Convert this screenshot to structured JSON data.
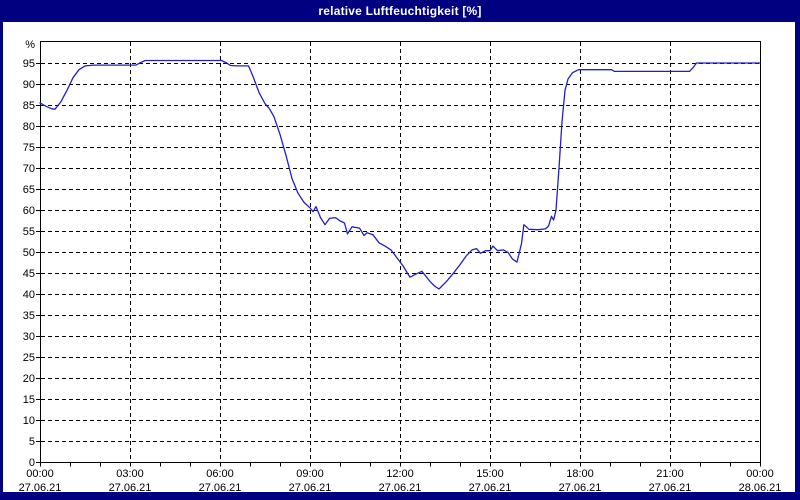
{
  "window": {
    "title": "relative Luftfeuchtigkeit [%]"
  },
  "colors": {
    "title_bar_bg": "#000080",
    "title_text": "#ffffff",
    "window_border": "#000080",
    "plot_bg": "#ffffff",
    "grid": "#000000",
    "axis_text": "#000000",
    "line": "#2020c8"
  },
  "chart_data": {
    "type": "line",
    "title": "relative Luftfeuchtigkeit [%]",
    "ylabel": "%",
    "y_unit_label": "%",
    "grid": "dashed",
    "legend": "none",
    "x_range_hours": [
      0,
      24
    ],
    "y_range": [
      0,
      100
    ],
    "y_ticks": [
      0,
      5,
      10,
      15,
      20,
      25,
      30,
      35,
      40,
      45,
      50,
      55,
      60,
      65,
      70,
      75,
      80,
      85,
      90,
      95
    ],
    "x_tick_interval_hours": 3,
    "x_minor_tick_interval_hours": 1,
    "x_tick_labels": [
      {
        "time": "00:00",
        "date": "27.06.21"
      },
      {
        "time": "03:00",
        "date": "27.06.21"
      },
      {
        "time": "06:00",
        "date": "27.06.21"
      },
      {
        "time": "09:00",
        "date": "27.06.21"
      },
      {
        "time": "12:00",
        "date": "27.06.21"
      },
      {
        "time": "15:00",
        "date": "27.06.21"
      },
      {
        "time": "18:00",
        "date": "27.06.21"
      },
      {
        "time": "21:00",
        "date": "27.06.21"
      },
      {
        "time": "00:00",
        "date": "28.06.21"
      }
    ],
    "series": [
      {
        "name": "relative Luftfeuchtigkeit",
        "unit": "%",
        "points": [
          [
            0,
            85.5
          ],
          [
            0.2,
            84.7
          ],
          [
            0.4,
            84.1
          ],
          [
            0.5,
            84.0
          ],
          [
            0.7,
            85.8
          ],
          [
            0.9,
            88.5
          ],
          [
            1.1,
            91.5
          ],
          [
            1.3,
            93.4
          ],
          [
            1.5,
            94.3
          ],
          [
            1.8,
            94.5
          ],
          [
            3.2,
            94.5
          ],
          [
            3.35,
            95.1
          ],
          [
            3.5,
            95.6
          ],
          [
            6.05,
            95.6
          ],
          [
            6.2,
            95.1
          ],
          [
            6.35,
            94.4
          ],
          [
            6.55,
            94.3
          ],
          [
            6.95,
            94.3
          ],
          [
            7.1,
            91.8
          ],
          [
            7.3,
            88.0
          ],
          [
            7.5,
            85.3
          ],
          [
            7.65,
            84.1
          ],
          [
            7.8,
            82.2
          ],
          [
            8.0,
            78.0
          ],
          [
            8.2,
            73.0
          ],
          [
            8.4,
            67.5
          ],
          [
            8.6,
            64.0
          ],
          [
            8.8,
            61.8
          ],
          [
            9.0,
            60.5
          ],
          [
            9.1,
            59.6
          ],
          [
            9.2,
            60.8
          ],
          [
            9.35,
            58.2
          ],
          [
            9.5,
            56.5
          ],
          [
            9.65,
            58.0
          ],
          [
            9.85,
            58.2
          ],
          [
            10.0,
            57.4
          ],
          [
            10.15,
            56.9
          ],
          [
            10.25,
            54.3
          ],
          [
            10.4,
            56.0
          ],
          [
            10.65,
            55.7
          ],
          [
            10.8,
            53.9
          ],
          [
            10.9,
            54.6
          ],
          [
            11.1,
            54.1
          ],
          [
            11.3,
            52.2
          ],
          [
            11.5,
            51.4
          ],
          [
            11.7,
            50.5
          ],
          [
            11.9,
            48.6
          ],
          [
            12.1,
            46.7
          ],
          [
            12.33,
            44.0
          ],
          [
            12.55,
            44.8
          ],
          [
            12.73,
            45.4
          ],
          [
            13.0,
            43.0
          ],
          [
            13.15,
            41.9
          ],
          [
            13.3,
            41.2
          ],
          [
            13.55,
            43.0
          ],
          [
            13.75,
            44.7
          ],
          [
            14.0,
            47.0
          ],
          [
            14.2,
            49.0
          ],
          [
            14.4,
            50.5
          ],
          [
            14.55,
            50.8
          ],
          [
            14.68,
            49.7
          ],
          [
            14.85,
            50.3
          ],
          [
            15.0,
            50.3
          ],
          [
            15.1,
            51.4
          ],
          [
            15.25,
            50.3
          ],
          [
            15.45,
            50.5
          ],
          [
            15.6,
            49.9
          ],
          [
            15.75,
            48.3
          ],
          [
            15.9,
            47.6
          ],
          [
            16.05,
            52.0
          ],
          [
            16.13,
            56.5
          ],
          [
            16.3,
            55.4
          ],
          [
            16.6,
            55.3
          ],
          [
            16.85,
            55.5
          ],
          [
            16.95,
            56.2
          ],
          [
            17.05,
            58.5
          ],
          [
            17.12,
            57.6
          ],
          [
            17.2,
            60.0
          ],
          [
            17.3,
            70.0
          ],
          [
            17.4,
            81.0
          ],
          [
            17.5,
            88.5
          ],
          [
            17.6,
            91.2
          ],
          [
            17.75,
            92.7
          ],
          [
            17.95,
            93.4
          ],
          [
            19.05,
            93.4
          ],
          [
            19.15,
            93.0
          ],
          [
            21.65,
            93.0
          ],
          [
            21.78,
            94.0
          ],
          [
            21.88,
            95.0
          ],
          [
            24,
            95.0
          ]
        ]
      }
    ]
  }
}
